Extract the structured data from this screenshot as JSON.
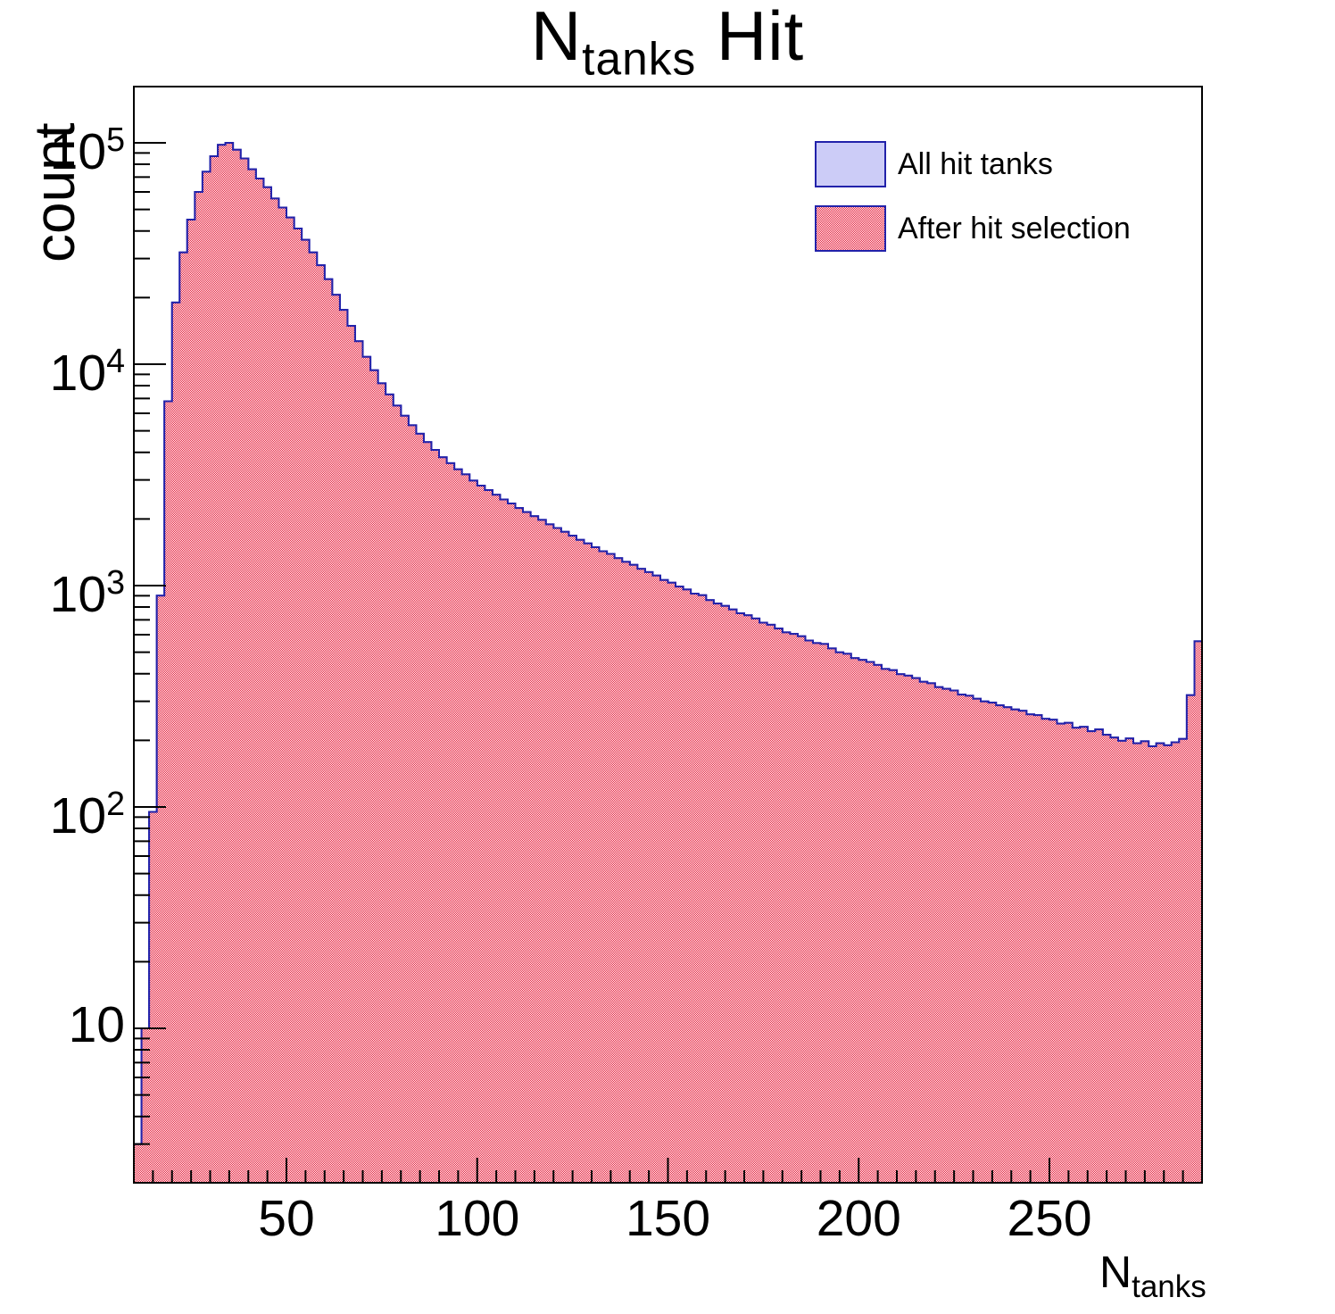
{
  "title": {
    "main": "N",
    "sub": "tanks",
    "rest": " Hit"
  },
  "y_axis": {
    "title": "count",
    "tick_labels": [
      {
        "base": "10",
        "exp": "5"
      },
      {
        "base": "10",
        "exp": "4"
      },
      {
        "base": "10",
        "exp": "3"
      },
      {
        "base": "10",
        "exp": "2"
      },
      {
        "base": "10",
        "exp": ""
      }
    ]
  },
  "x_axis": {
    "title_main": "N",
    "title_sub": "tanks",
    "tick_labels": [
      "50",
      "100",
      "150",
      "200",
      "250"
    ],
    "tick_values": [
      50,
      100,
      150,
      200,
      250
    ]
  },
  "legend": {
    "entries": [
      {
        "label": "All hit tanks",
        "swatch": "solid-lavender"
      },
      {
        "label": "After hit selection",
        "swatch": "red-checker"
      }
    ]
  },
  "colors": {
    "hist_outline": "#2222aa",
    "all_fill": "#ccccf7",
    "selection_red": "#e51937",
    "frame": "#000000",
    "text": "#000000"
  },
  "chart_data": {
    "type": "bar",
    "title": "N_tanks Hit",
    "xlabel": "N_tanks",
    "ylabel": "count",
    "yscale": "log",
    "xlim": [
      10,
      290
    ],
    "ylim": [
      2,
      180000
    ],
    "bin_start": 10,
    "bin_width": 2,
    "grid": false,
    "legend_position": "top-right",
    "series": [
      {
        "name": "All hit tanks",
        "style": "solid",
        "values": [
          3,
          10,
          95,
          900,
          6800,
          19000,
          32000,
          45000,
          60000,
          74000,
          87000,
          98000,
          100000,
          93000,
          85000,
          76000,
          69000,
          63000,
          56000,
          51000,
          46000,
          41000,
          36500,
          32000,
          28000,
          24200,
          20600,
          17600,
          14900,
          12700,
          10800,
          9400,
          8200,
          7300,
          6500,
          5850,
          5300,
          4850,
          4450,
          4100,
          3800,
          3570,
          3350,
          3180,
          2980,
          2830,
          2700,
          2570,
          2450,
          2350,
          2240,
          2150,
          2060,
          1980,
          1890,
          1820,
          1750,
          1680,
          1610,
          1550,
          1490,
          1430,
          1390,
          1330,
          1280,
          1240,
          1190,
          1150,
          1110,
          1060,
          1030,
          990,
          960,
          920,
          905,
          860,
          830,
          810,
          780,
          750,
          735,
          710,
          680,
          665,
          640,
          615,
          605,
          590,
          565,
          550,
          545,
          520,
          500,
          492,
          470,
          462,
          452,
          438,
          420,
          415,
          398,
          392,
          382,
          368,
          362,
          348,
          342,
          336,
          322,
          318,
          308,
          300,
          296,
          288,
          282,
          276,
          272,
          262,
          260,
          250,
          248,
          238,
          240,
          228,
          230,
          220,
          224,
          212,
          206,
          199,
          204,
          194,
          198,
          188,
          194,
          190,
          196,
          203,
          320,
          560
        ]
      },
      {
        "name": "After hit selection",
        "style": "hatched",
        "values": [
          3,
          10,
          95,
          900,
          6800,
          19000,
          32000,
          45000,
          60000,
          74000,
          87000,
          98000,
          100000,
          93000,
          85000,
          76000,
          69000,
          63000,
          56000,
          51000,
          46000,
          41000,
          36500,
          32000,
          28000,
          24200,
          20600,
          17600,
          14900,
          12700,
          10800,
          9400,
          8200,
          7300,
          6500,
          5850,
          5300,
          4850,
          4450,
          4100,
          3800,
          3570,
          3350,
          3180,
          2980,
          2830,
          2700,
          2570,
          2450,
          2350,
          2240,
          2150,
          2060,
          1980,
          1890,
          1820,
          1750,
          1680,
          1610,
          1550,
          1490,
          1430,
          1390,
          1330,
          1280,
          1240,
          1190,
          1150,
          1110,
          1060,
          1030,
          990,
          960,
          920,
          905,
          860,
          830,
          810,
          780,
          750,
          735,
          710,
          680,
          665,
          640,
          615,
          605,
          590,
          565,
          550,
          545,
          520,
          500,
          492,
          470,
          462,
          452,
          438,
          420,
          415,
          398,
          392,
          382,
          368,
          362,
          348,
          342,
          336,
          322,
          318,
          308,
          300,
          296,
          288,
          282,
          276,
          272,
          262,
          260,
          250,
          248,
          238,
          240,
          228,
          230,
          220,
          224,
          212,
          206,
          199,
          204,
          194,
          198,
          188,
          194,
          190,
          196,
          203,
          320,
          560
        ]
      }
    ]
  }
}
